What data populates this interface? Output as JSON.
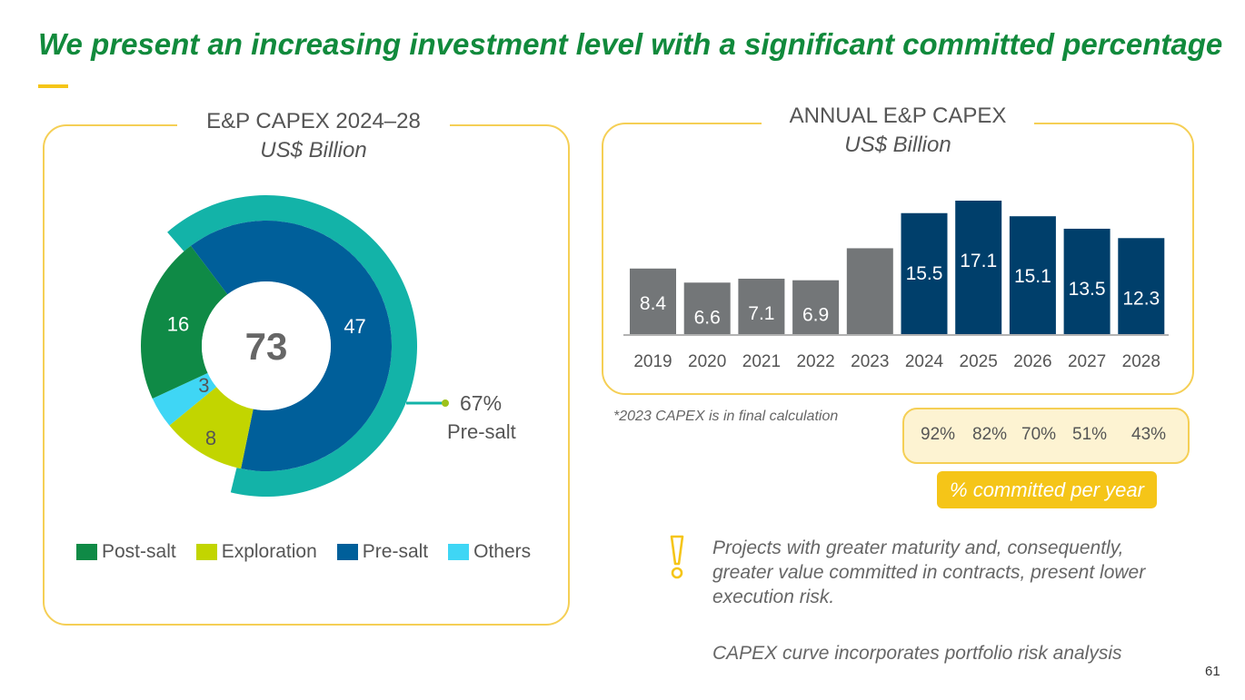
{
  "title": "We present an increasing investment level with a significant committed percentage",
  "left_panel": {
    "heading": "E&P CAPEX 2024–28",
    "unit": "US$ Billion",
    "total": "73",
    "callout_percent": "67%",
    "callout_label": "Pre-salt",
    "legend": [
      {
        "label": "Post-salt",
        "color": "#0f8a46"
      },
      {
        "label": "Exploration",
        "color": "#c2d500"
      },
      {
        "label": "Pre-salt",
        "color": "#005f9a"
      },
      {
        "label": "Others",
        "color": "#3fd6f5"
      }
    ]
  },
  "right_panel": {
    "heading": "ANNUAL E&P CAPEX",
    "unit": "US$ Billion",
    "footnote": "*2023 CAPEX is in final calculation",
    "committed": [
      "92%",
      "82%",
      "70%",
      "51%",
      "43%"
    ],
    "committed_label": "% committed per year"
  },
  "note": "Projects with greater maturity and, consequently, greater value committed in contracts, present lower execution risk.",
  "capex_note": "CAPEX curve incorporates portfolio risk analysis",
  "page_number": "61",
  "chart_data": [
    {
      "type": "pie",
      "title": "E&P CAPEX 2024–28",
      "unit": "US$ Billion",
      "center_label": "73",
      "categories": [
        "Post-salt",
        "Exploration",
        "Pre-salt",
        "Others"
      ],
      "values": [
        16,
        8,
        47,
        3
      ],
      "colors": [
        "#0f8a46",
        "#c2d500",
        "#005f9a",
        "#3fd6f5"
      ],
      "outer_ring": {
        "label": "Pre-salt",
        "percent": 67,
        "color": "#13b3a8"
      }
    },
    {
      "type": "bar",
      "title": "ANNUAL E&P CAPEX",
      "unit": "US$ Billion",
      "categories": [
        "2019",
        "2020",
        "2021",
        "2022",
        "2023",
        "2024",
        "2025",
        "2026",
        "2027",
        "2028"
      ],
      "values": [
        8.4,
        6.6,
        7.1,
        6.9,
        11.0,
        15.5,
        17.1,
        15.1,
        13.5,
        12.3
      ],
      "labels": [
        "8.4",
        "6.6",
        "7.1",
        "6.9",
        "",
        "15.5",
        "17.1",
        "15.1",
        "13.5",
        "12.3"
      ],
      "colors": [
        "#737678",
        "#737678",
        "#737678",
        "#737678",
        "#737678",
        "#003f6b",
        "#003f6b",
        "#003f6b",
        "#003f6b",
        "#003f6b"
      ],
      "ylim": [
        0,
        18
      ]
    }
  ]
}
